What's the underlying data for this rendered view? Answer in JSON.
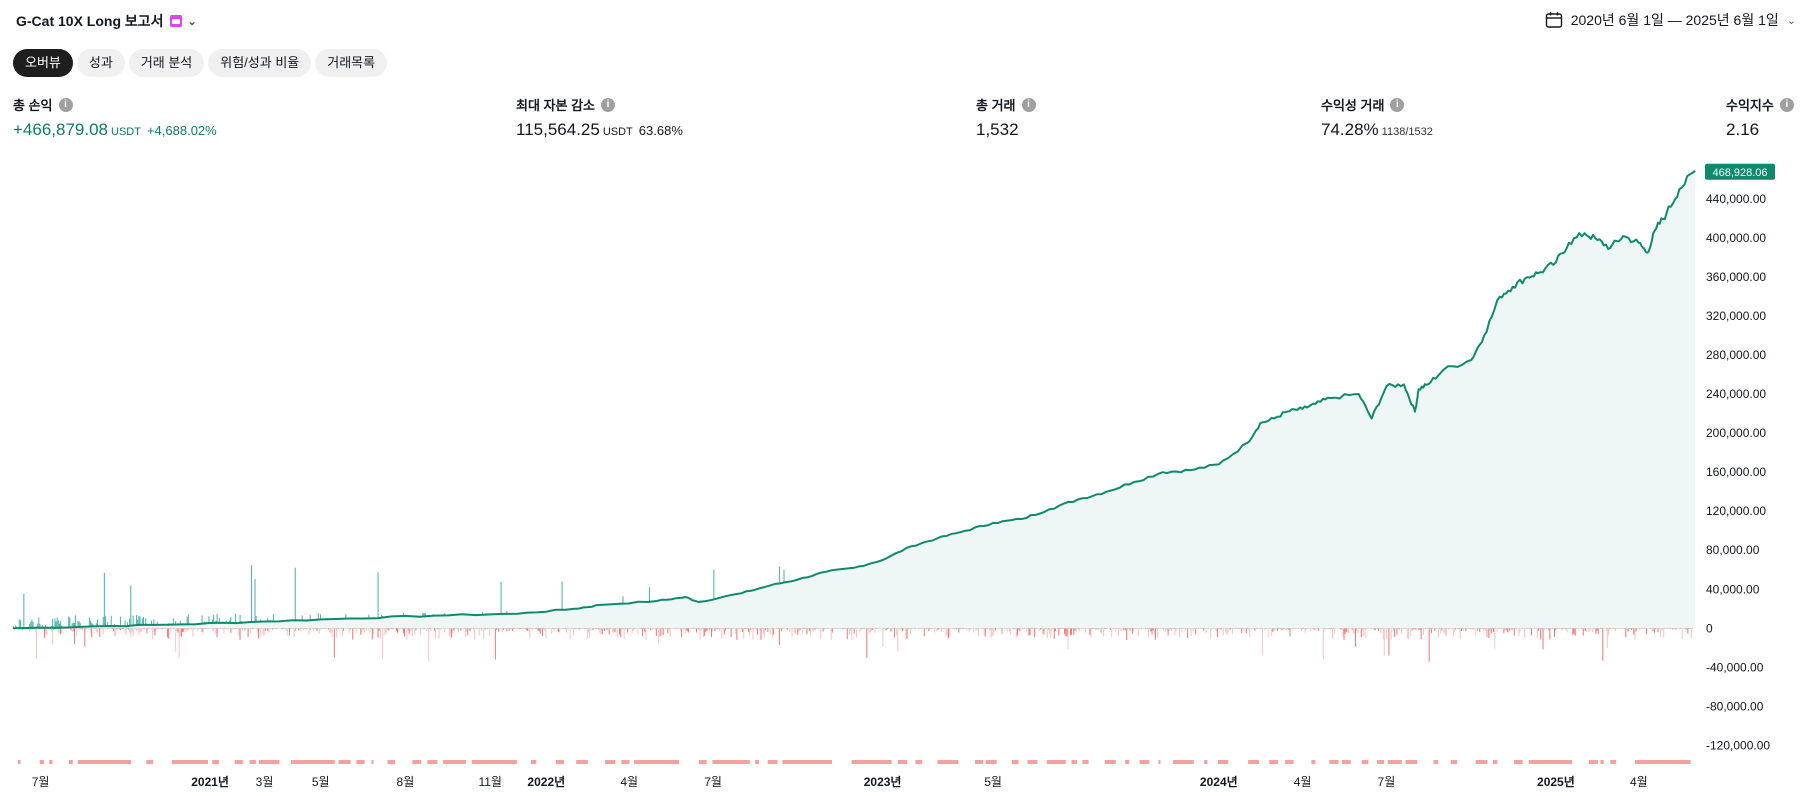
{
  "header": {
    "title": "G-Cat 10X Long 보고서",
    "date_range": "2020년 6월 1일 — 2025년 6월 1일"
  },
  "tabs": [
    {
      "label": "오버뷰",
      "active": true
    },
    {
      "label": "성과",
      "active": false
    },
    {
      "label": "거래 분석",
      "active": false
    },
    {
      "label": "위험/성과 비율",
      "active": false
    },
    {
      "label": "거래목록",
      "active": false
    }
  ],
  "stats": {
    "total_pnl": {
      "label": "총 손익",
      "value": "+466,879.08",
      "unit": "USDT",
      "pct": "+4,688.02%"
    },
    "max_drawdown": {
      "label": "최대 자본 감소",
      "value": "115,564.25",
      "unit": "USDT",
      "pct": "63.68%"
    },
    "total_trades": {
      "label": "총 거래",
      "value": "1,532"
    },
    "profitable_trades": {
      "label": "수익성 거래",
      "value": "74.28%",
      "sub": "1138/1532"
    },
    "profit_factor": {
      "label": "수익지수",
      "value": "2.16"
    }
  },
  "colors": {
    "equity": "#0f8a6c",
    "fill": "#eef7f5",
    "bar_up": "#26a69a",
    "bar_down": "#ef5350",
    "badge": "#0f8a6c"
  },
  "chart_data": {
    "type": "line",
    "ylim": [
      -135000,
      480000
    ],
    "yticks": [
      440000,
      400000,
      360000,
      320000,
      280000,
      240000,
      200000,
      160000,
      120000,
      80000,
      40000,
      0,
      -40000,
      -80000,
      -120000
    ],
    "ytick_labels": [
      "440,000.00",
      "400,000.00",
      "360,000.00",
      "320,000.00",
      "280,000.00",
      "240,000.00",
      "200,000.00",
      "160,000.00",
      "120,000.00",
      "80,000.00",
      "40,000.00",
      "0",
      "-40,000.00",
      "-80,000.00",
      "-120,000.00"
    ],
    "last_value_label": "468,928.06",
    "xlim": [
      "2020-06-01",
      "2025-06-01"
    ],
    "xticks": [
      {
        "date": "2020-07-01",
        "label": "7월",
        "year": false
      },
      {
        "date": "2021-01-01",
        "label": "2021년",
        "year": true
      },
      {
        "date": "2021-03-01",
        "label": "3월",
        "year": false
      },
      {
        "date": "2021-05-01",
        "label": "5월",
        "year": false
      },
      {
        "date": "2021-08-01",
        "label": "8월",
        "year": false
      },
      {
        "date": "2021-11-01",
        "label": "11월",
        "year": false
      },
      {
        "date": "2022-01-01",
        "label": "2022년",
        "year": true
      },
      {
        "date": "2022-04-01",
        "label": "4월",
        "year": false
      },
      {
        "date": "2022-07-01",
        "label": "7월",
        "year": false
      },
      {
        "date": "2023-01-01",
        "label": "2023년",
        "year": true
      },
      {
        "date": "2023-05-01",
        "label": "5월",
        "year": false
      },
      {
        "date": "2024-01-01",
        "label": "2024년",
        "year": true
      },
      {
        "date": "2024-04-01",
        "label": "4월",
        "year": false
      },
      {
        "date": "2024-07-01",
        "label": "7월",
        "year": false
      },
      {
        "date": "2025-01-01",
        "label": "2025년",
        "year": true
      },
      {
        "date": "2025-04-01",
        "label": "4월",
        "year": false
      }
    ],
    "series": [
      {
        "kind": "equity",
        "x": [
          "2020-06-01",
          "2020-09-01",
          "2020-12-01",
          "2021-03-01",
          "2021-06-01",
          "2021-09-01",
          "2021-12-01",
          "2022-02-01",
          "2022-03-01",
          "2022-05-01",
          "2022-06-01",
          "2022-06-15",
          "2022-08-01",
          "2022-09-01",
          "2022-10-01",
          "2022-11-01",
          "2022-12-01",
          "2023-01-01",
          "2023-02-01",
          "2023-03-01",
          "2023-04-01",
          "2023-05-01",
          "2023-06-01",
          "2023-07-01",
          "2023-08-01",
          "2023-09-01",
          "2023-10-01",
          "2023-11-01",
          "2023-12-01",
          "2024-01-01",
          "2024-02-01",
          "2024-02-15",
          "2024-03-01",
          "2024-03-15",
          "2024-04-01",
          "2024-04-15",
          "2024-05-01",
          "2024-06-01",
          "2024-06-15",
          "2024-07-01",
          "2024-07-20",
          "2024-08-01",
          "2024-08-05",
          "2024-08-15",
          "2024-09-01",
          "2024-10-01",
          "2024-10-15",
          "2024-11-01",
          "2024-11-15",
          "2024-12-01",
          "2024-12-15",
          "2025-01-01",
          "2025-01-15",
          "2025-02-01",
          "2025-02-15",
          "2025-03-01",
          "2025-03-15",
          "2025-04-01",
          "2025-04-10",
          "2025-04-20",
          "2025-05-01",
          "2025-05-15",
          "2025-06-01"
        ],
        "y": [
          0,
          2000,
          4000,
          7000,
          10000,
          13000,
          15000,
          20000,
          24000,
          28000,
          32000,
          27000,
          36000,
          44000,
          50000,
          58000,
          62000,
          70000,
          84000,
          92000,
          100000,
          108000,
          112000,
          122000,
          132000,
          140000,
          150000,
          160000,
          162000,
          168000,
          190000,
          210000,
          215000,
          222000,
          225000,
          230000,
          236000,
          240000,
          215000,
          248000,
          250000,
          222000,
          245000,
          250000,
          265000,
          275000,
          300000,
          340000,
          350000,
          360000,
          365000,
          375000,
          395000,
          405000,
          398000,
          390000,
          402000,
          395000,
          385000,
          410000,
          425000,
          450000,
          468928
        ]
      }
    ],
    "pnl_bars": {
      "positive_max": 65000,
      "negative_max": -35000,
      "note": "per-trade profit/loss histogram"
    }
  }
}
